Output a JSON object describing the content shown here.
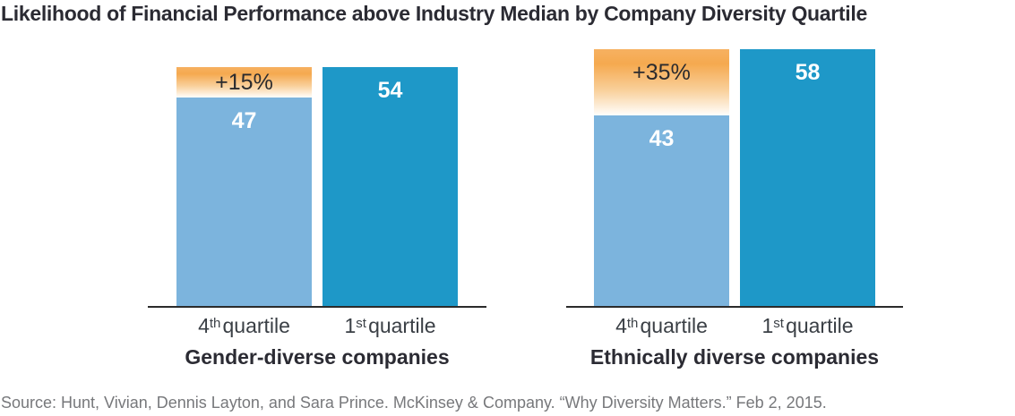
{
  "title": "Likelihood of Financial Performance above Industry Median by Company Diversity Quartile",
  "source": "Source: Hunt, Vivian, Dennis Layton, and Sara Prince. McKinsey & Company. “Why Diversity Matters.” Feb 2, 2015.",
  "colors": {
    "bar_4th_quartile": "#7cb4dd",
    "bar_1st_quartile": "#1e98c8",
    "delta_cap_orange": "#f5a94f",
    "axis": "#2b2b2b",
    "title_text": "#2b2b33",
    "axis_label_text": "#3a3f45",
    "bar_value_text": "#ffffff",
    "delta_label_text": "#2b2b2e",
    "source_text": "#77787b"
  },
  "chart_data": {
    "type": "bar",
    "title": "Likelihood of Financial Performance above Industry Median by Company Diversity Quartile",
    "ylim": [
      0,
      58
    ],
    "grid": false,
    "legend": "none",
    "groups": [
      {
        "title": "Gender-diverse companies",
        "categories": [
          "4th quartile",
          "1st quartile"
        ],
        "values": [
          47,
          54
        ],
        "annotations": [
          {
            "on_category": "4th quartile",
            "label": "+15%"
          }
        ],
        "bars": [
          {
            "value": 47,
            "value_label": "47",
            "cap_to": 54,
            "cap_label": "+15%",
            "label_parts": {
              "num": "4",
              "sup": "th",
              "word": "quartile"
            }
          },
          {
            "value": 54,
            "value_label": "54",
            "label_parts": {
              "num": "1",
              "sup": "st",
              "word": "quartile"
            }
          }
        ]
      },
      {
        "title": "Ethnically diverse companies",
        "categories": [
          "4th quartile",
          "1st quartile"
        ],
        "values": [
          43,
          58
        ],
        "annotations": [
          {
            "on_category": "4th quartile",
            "label": "+35%"
          }
        ],
        "bars": [
          {
            "value": 43,
            "value_label": "43",
            "cap_to": 58,
            "cap_label": "+35%",
            "label_parts": {
              "num": "4",
              "sup": "th",
              "word": "quartile"
            }
          },
          {
            "value": 58,
            "value_label": "58",
            "label_parts": {
              "num": "1",
              "sup": "st",
              "word": "quartile"
            }
          }
        ]
      }
    ]
  }
}
